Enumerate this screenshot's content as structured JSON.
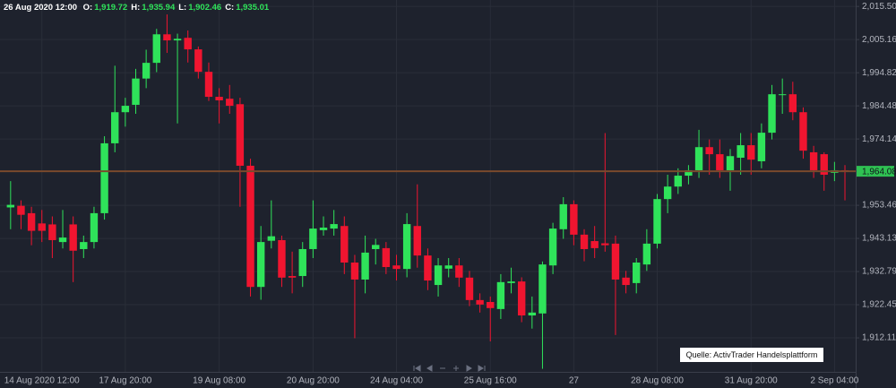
{
  "chart_data": {
    "type": "candlestick",
    "header": {
      "date": "26 Aug 2020 12:00",
      "fields": [
        {
          "label": "O:",
          "value": {
            "value": 1919.72,
            "label": "1,919.72"
          }
        },
        {
          "label": "H:",
          "value": {
            "value": 1935.94,
            "label": "1,935.94"
          }
        },
        {
          "label": "L:",
          "value": {
            "value": 1902.46,
            "label": "1,902.46"
          }
        },
        {
          "label": "C:",
          "value": {
            "value": 1935.01,
            "label": "1,935.01"
          }
        }
      ]
    },
    "annotation": "Quelle: ActivTrader Handelsplattform",
    "categories": [
      null,
      null,
      null,
      "14 Aug 2020 12:00",
      null,
      null,
      null,
      null,
      null,
      null,
      null,
      "17 Aug 20:00",
      null,
      null,
      null,
      null,
      null,
      null,
      null,
      null,
      "19 Aug 08:00",
      null,
      null,
      null,
      null,
      null,
      null,
      null,
      null,
      "20 Aug 20:00",
      null,
      null,
      null,
      null,
      null,
      null,
      null,
      "24 Aug 04:00",
      null,
      null,
      null,
      null,
      null,
      null,
      null,
      null,
      "25 Aug 16:00",
      null,
      null,
      null,
      null,
      null,
      null,
      null,
      "27",
      null,
      null,
      null,
      null,
      null,
      null,
      null,
      "28 Aug 08:00",
      null,
      null,
      null,
      null,
      null,
      null,
      null,
      null,
      "31 Aug 20:00",
      null,
      null,
      null,
      null,
      null,
      null,
      null,
      "2 Sep 04:00",
      null
    ],
    "open": [
      1952.8,
      1953.3,
      1951,
      1947.8,
      1947.5,
      1942,
      1947.5,
      1939.8,
      1942,
      1951,
      1972.8,
      1982.5,
      1984.8,
      1993,
      1997.9,
      2006.8,
      2004.9,
      2005.7,
      2002.1,
      1995.1,
      1987.3,
      1986.7,
      1985,
      1965.8,
      1928,
      1942.4,
      1942.6,
      1931.4,
      1931.4,
      1939.8,
      1945.7,
      1946.2,
      1947,
      1935.6,
      1930.3,
      1939.8,
      1940.1,
      1934.7,
      1933.6,
      1947,
      1937.8,
      1928.6,
      1933.7,
      1934.7,
      1930.9,
      1923.9,
      1923.3,
      1921.1,
      1929.2,
      1929.7,
      1919.1,
      1919.72,
      1934.7,
      1946,
      1953.8,
      1944.3,
      1942.3,
      1941.6,
      1941.5,
      1930.9,
      1929.2,
      1935,
      1941.5,
      1955.4,
      1959.3,
      1962.7,
      1964.4,
      1971.6,
      1969.4,
      1964.4,
      1968.3,
      1972.2,
      1967.2,
      1976.1,
      1987.9,
      1988.1,
      1982.5,
      1970,
      1969.4,
      1963.6,
      1964.4
    ],
    "high": [
      1961,
      1955,
      1953,
      1952,
      1950,
      1952,
      1950,
      1944,
      1953,
      1975,
      1997,
      1987,
      1996,
      2002,
      2008.5,
      2013,
      2007,
      2008,
      2003,
      1998,
      1990,
      1991,
      1987,
      1968,
      1947,
      1955,
      1944,
      1939,
      1942,
      1955,
      1950,
      1952,
      1950,
      1938,
      1944,
      1943,
      1942,
      1938,
      1951,
      1960,
      1940,
      1937,
      1937,
      1937,
      1933,
      1926,
      1925,
      1932,
      1934,
      1931,
      1925,
      1935.94,
      1948,
      1956,
      1955,
      1946,
      1947,
      1976,
      1944,
      1933,
      1937,
      1946,
      1957,
      1963,
      1965,
      1966,
      1977,
      1974,
      1974,
      1971,
      1976,
      1976,
      1979,
      1991,
      1993,
      1992,
      1984,
      1972,
      1970,
      1967,
      1966
    ],
    "low": [
      1946,
      1946,
      1941,
      1942,
      1937,
      1940,
      1929.5,
      1937,
      1940,
      1949,
      1970,
      1978,
      1982,
      1990,
      1995,
      2001,
      1979,
      1998,
      1993,
      1986,
      1979,
      1982,
      1953,
      1925,
      1924,
      1940,
      1928,
      1926,
      1928,
      1937,
      1944,
      1944,
      1932,
      1912,
      1926,
      1935,
      1932,
      1930,
      1931,
      1934,
      1927,
      1925,
      1931,
      1928,
      1922,
      1920,
      1911,
      1918,
      1926,
      1917,
      1915,
      1902.46,
      1932,
      1943,
      1941,
      1936,
      1937,
      1939,
      1913,
      1926,
      1926,
      1933,
      1940,
      1951,
      1957,
      1960,
      1962,
      1963,
      1962,
      1958,
      1963,
      1963,
      1965,
      1974,
      1982,
      1980,
      1968,
      1962,
      1958,
      1961,
      1955
    ],
    "close": [
      1953.6,
      1950.5,
      1945.5,
      1945.5,
      1942.6,
      1943.4,
      1939.3,
      1942,
      1951,
      1972.8,
      1982.5,
      1984.5,
      1993,
      1997.9,
      2006.8,
      2004.9,
      2005.4,
      2002.1,
      1995.1,
      1987.3,
      1986.2,
      1984.5,
      1965.8,
      1928,
      1942,
      1943.8,
      1930.9,
      1930.9,
      1939.8,
      1946.2,
      1946.5,
      1947.6,
      1935.6,
      1930.3,
      1938.7,
      1941.1,
      1934.2,
      1933.6,
      1947.6,
      1937.8,
      1930,
      1934.7,
      1934.7,
      1930.9,
      1923.9,
      1922.5,
      1921.4,
      1929.5,
      1929.7,
      1919.1,
      1920,
      1935.01,
      1946.2,
      1953.8,
      1944.3,
      1939.8,
      1940.1,
      1941,
      1930.3,
      1928.6,
      1935.6,
      1941.5,
      1955.4,
      1959.3,
      1962.7,
      1964.4,
      1971.6,
      1969.4,
      1964.4,
      1968.8,
      1972.2,
      1967.7,
      1976.1,
      1988.1,
      1988.1,
      1982.5,
      1970.5,
      1964.4,
      1963,
      1964.4,
      1964.08
    ],
    "up_color": "#2fe35a",
    "down_color": "#f01530",
    "last_price": {
      "value": 1964.08,
      "label": "1,964.08"
    },
    "last_price_color": "#2fc152",
    "ylim": [
      1901.5,
      2017.5
    ],
    "yticks": [
      {
        "value": 2015.5,
        "label": "2,015.50"
      },
      {
        "value": 2005.16,
        "label": "2,005.16"
      },
      {
        "value": 1994.82,
        "label": "1,994.82"
      },
      {
        "value": 1984.48,
        "label": "1,984.48"
      },
      {
        "value": 1974.14,
        "label": "1,974.14"
      },
      {
        "value": 1953.46,
        "label": "1,953.46"
      },
      {
        "value": 1943.13,
        "label": "1,943.13"
      },
      {
        "value": 1932.79,
        "label": "1,932.79"
      },
      {
        "value": 1922.45,
        "label": "1,922.45"
      },
      {
        "value": 1912.11,
        "label": "1,912.11"
      }
    ],
    "grid": true
  }
}
